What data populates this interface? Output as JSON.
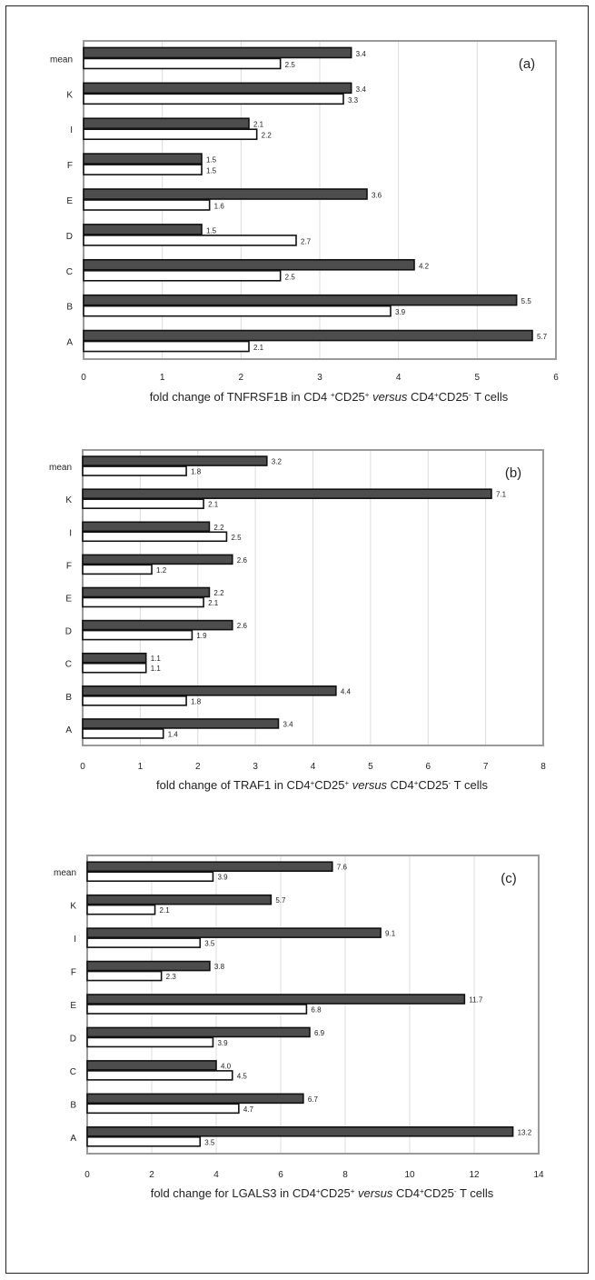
{
  "chart_data": [
    {
      "type": "bar",
      "panel_label": "(a)",
      "categories": [
        "mean",
        "K",
        "I",
        "F",
        "E",
        "D",
        "C",
        "B",
        "A"
      ],
      "series": [
        {
          "values": [
            3.4,
            3.4,
            2.1,
            1.5,
            3.6,
            1.5,
            4.2,
            5.5,
            5.7
          ]
        },
        {
          "values": [
            2.5,
            3.3,
            2.2,
            1.5,
            1.6,
            2.7,
            2.5,
            3.9,
            2.1
          ]
        }
      ],
      "data_labels": [
        [
          "3.4",
          "3.4",
          "2.1",
          "1.5",
          "3.6",
          "1.5",
          "4.2",
          "5.5",
          "5.7"
        ],
        [
          "2.5",
          "3.3",
          "2.2",
          "1.5",
          "1.6",
          "2.7",
          "2.5",
          "3.9",
          "2.1"
        ]
      ],
      "xticks": [
        "0",
        "1",
        "2",
        "3",
        "4",
        "5",
        "6"
      ],
      "xlim": [
        0,
        6
      ],
      "xlabel": "fold change of TNFRSF1B in CD4 ⁺ CD25⁺ versus CD4⁺CD25⁻ T cells",
      "xlabel_parts": [
        "fold change of TNFRSF1B in CD4 ",
        "+",
        "CD25",
        "+",
        " versus ",
        "CD4",
        "+",
        "CD25",
        "-",
        " T cells"
      ],
      "grid": "vertical"
    },
    {
      "type": "bar",
      "panel_label": "(b)",
      "categories": [
        "mean",
        "K",
        "I",
        "F",
        "E",
        "D",
        "C",
        "B",
        "A"
      ],
      "series": [
        {
          "values": [
            3.2,
            7.1,
            2.2,
            2.6,
            2.2,
            2.6,
            1.1,
            4.4,
            3.4
          ]
        },
        {
          "values": [
            1.8,
            2.1,
            2.5,
            1.2,
            2.1,
            1.9,
            1.1,
            1.8,
            1.4
          ]
        }
      ],
      "data_labels": [
        [
          "3.2",
          "7.1",
          "2.2",
          "2.6",
          "2.2",
          "2.6",
          "1.1",
          "4.4",
          "3.4"
        ],
        [
          "1.8",
          "2.1",
          "2.5",
          "1.2",
          "2.1",
          "1.9",
          "1.1",
          "1.8",
          "1.4"
        ]
      ],
      "xticks": [
        "0",
        "1",
        "2",
        "3",
        "4",
        "5",
        "6",
        "7",
        "8"
      ],
      "xlim": [
        0,
        8
      ],
      "xlabel": "fold change of TRAF1 in CD4⁺CD25⁺ versus CD4⁺CD25⁻ T cells",
      "xlabel_parts": [
        "fold change of TRAF1 in C",
        "D4",
        "+",
        "CD25",
        "+",
        " versus ",
        "CD4",
        "+",
        "CD25",
        "-",
        " T cel",
        "ls"
      ],
      "grid": "vertical"
    },
    {
      "type": "bar",
      "panel_label": "(c)",
      "categories": [
        "mean",
        "K",
        "I",
        "F",
        "E",
        "D",
        "C",
        "B",
        "A"
      ],
      "series": [
        {
          "values": [
            7.6,
            5.7,
            9.1,
            3.8,
            11.7,
            6.9,
            4.0,
            6.7,
            13.2
          ]
        },
        {
          "values": [
            3.9,
            2.1,
            3.5,
            2.3,
            6.8,
            3.9,
            4.5,
            4.7,
            3.5
          ]
        }
      ],
      "data_labels": [
        [
          "7.6",
          "5.7",
          "9.1",
          "3.8",
          "11.7",
          "6.9",
          "4.0",
          "6.7",
          "13.2"
        ],
        [
          "3.9",
          "2.1",
          "3.5",
          "2.3",
          "6.8",
          "3.9",
          "4.5",
          "4.7",
          "3.5"
        ]
      ],
      "xticks": [
        "0",
        "2",
        "4",
        "6",
        "8",
        "10",
        "12",
        "14"
      ],
      "xlim": [
        0,
        14
      ],
      "xlabel": "fold change for LGALS3 in CD4⁺CD25⁺ versus CD4⁺CD25⁻ T cells",
      "xlabel_parts": [
        "fold c",
        "hange for LGALS3 in C",
        "D4",
        "+",
        "CD25",
        "+",
        " versus ",
        "CD4",
        "+",
        "CD25",
        "-",
        " T cells"
      ],
      "grid": "vertical"
    }
  ],
  "colors": {
    "series_1": "#4d4d4d",
    "series_2": "#ffffff",
    "bar_stroke": "#111111",
    "plot_border": "#9a9a9a",
    "grid": "#dcdcdc"
  }
}
